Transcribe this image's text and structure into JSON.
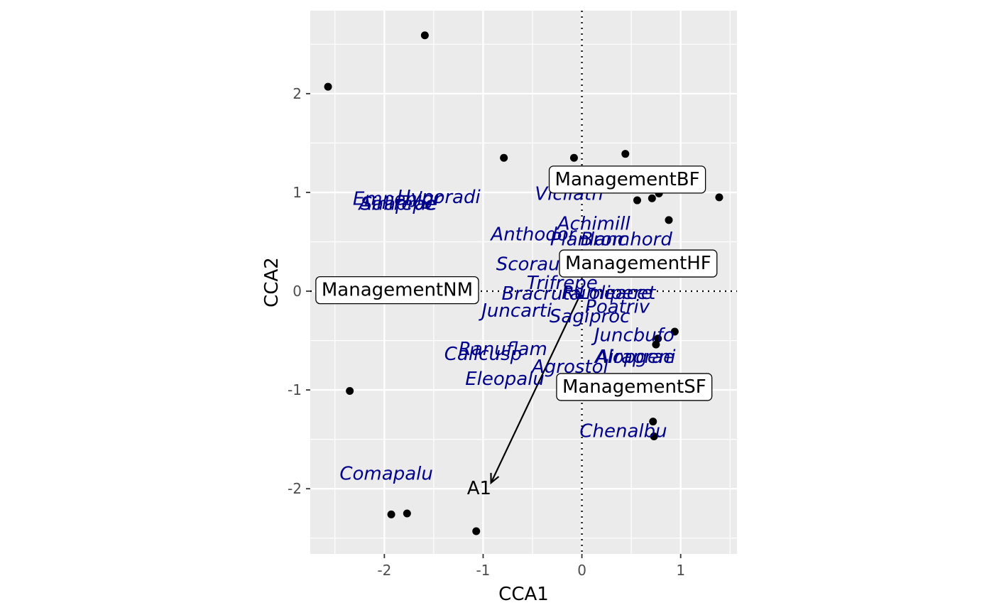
{
  "chart_data": {
    "type": "scatter",
    "xlabel": "CCA1",
    "ylabel": "CCA2",
    "xlim": [
      -2.75,
      1.57
    ],
    "ylim": [
      -2.66,
      2.84
    ],
    "x_ticks": [
      -2,
      -1,
      0,
      1
    ],
    "y_ticks": [
      -2,
      -1,
      0,
      1,
      2
    ],
    "x_tick_labels": [
      "-2",
      "-1",
      "0",
      "1"
    ],
    "y_tick_labels": [
      "-2",
      "-1",
      "0",
      "1",
      "2"
    ],
    "grid": true,
    "colors": {
      "panel_background": "#ebebeb",
      "grid_line": "#ffffff",
      "points": "#000000",
      "species_text": "#00008b",
      "label_box_fill": "#ffffff",
      "label_box_border": "#000000"
    },
    "site_points": [
      {
        "x": -2.57,
        "y": 2.07
      },
      {
        "x": -1.59,
        "y": 2.59
      },
      {
        "x": -0.79,
        "y": 1.35
      },
      {
        "x": -0.08,
        "y": 1.35
      },
      {
        "x": 0.44,
        "y": 1.39
      },
      {
        "x": 0.56,
        "y": 0.92
      },
      {
        "x": 0.71,
        "y": 0.94
      },
      {
        "x": 0.78,
        "y": 0.99
      },
      {
        "x": 0.88,
        "y": 0.72
      },
      {
        "x": 1.39,
        "y": 0.95
      },
      {
        "x": 0.77,
        "y": -0.48
      },
      {
        "x": 0.75,
        "y": -0.54
      },
      {
        "x": 0.94,
        "y": -0.41
      },
      {
        "x": 0.72,
        "y": -1.32
      },
      {
        "x": 0.73,
        "y": -1.47
      },
      {
        "x": -2.35,
        "y": -1.01
      },
      {
        "x": -1.93,
        "y": -2.26
      },
      {
        "x": -1.77,
        "y": -2.25
      },
      {
        "x": -1.07,
        "y": -2.43
      }
    ],
    "species": [
      {
        "label": "Empenigr",
        "x": -1.87,
        "y": 0.93
      },
      {
        "label": "Hyporadi",
        "x": -1.45,
        "y": 0.95
      },
      {
        "label": "Airaprae",
        "x": -1.86,
        "y": 0.88
      },
      {
        "label": "Salirepe",
        "x": -1.86,
        "y": 0.88
      },
      {
        "label": "Vicilath",
        "x": -0.13,
        "y": 0.98
      },
      {
        "label": "Achimill",
        "x": 0.12,
        "y": 0.68
      },
      {
        "label": "Anthodor",
        "x": -0.49,
        "y": 0.57
      },
      {
        "label": "Planlanc",
        "x": 0.07,
        "y": 0.52
      },
      {
        "label": "Bromhord",
        "x": 0.45,
        "y": 0.52
      },
      {
        "label": "Scorautu",
        "x": -0.45,
        "y": 0.27
      },
      {
        "label": "Trifrepe",
        "x": -0.2,
        "y": 0.08
      },
      {
        "label": "Bracruta",
        "x": -0.41,
        "y": -0.03
      },
      {
        "label": "Rumeacet",
        "x": 0.27,
        "y": -0.02
      },
      {
        "label": "Lolipere",
        "x": 0.34,
        "y": -0.02
      },
      {
        "label": "Juncarti",
        "x": -0.66,
        "y": -0.2
      },
      {
        "label": "Poatriv",
        "x": 0.36,
        "y": -0.16
      },
      {
        "label": "Sagiproc",
        "x": 0.08,
        "y": -0.26
      },
      {
        "label": "Juncbufo",
        "x": 0.53,
        "y": -0.45
      },
      {
        "label": "Ranuflam",
        "x": -0.8,
        "y": -0.59
      },
      {
        "label": "Callcusp",
        "x": -1.0,
        "y": -0.64
      },
      {
        "label": "Alopgeni",
        "x": 0.54,
        "y": -0.67
      },
      {
        "label": "Airaprae2",
        "x": 0.54,
        "y": -0.67
      },
      {
        "label": "Agrostol",
        "x": -0.12,
        "y": -0.77
      },
      {
        "label": "Eleopalu",
        "x": -0.78,
        "y": -0.89
      },
      {
        "label": "Chenalbu",
        "x": 0.42,
        "y": -1.42
      },
      {
        "label": "Comapalu",
        "x": -1.98,
        "y": -1.85
      }
    ],
    "centroids": [
      {
        "label": "ManagementBF",
        "x": 0.46,
        "y": 1.13
      },
      {
        "label": "ManagementHF",
        "x": 0.57,
        "y": 0.28
      },
      {
        "label": "ManagementNM",
        "x": -1.87,
        "y": 0.01
      },
      {
        "label": "ManagementSF",
        "x": 0.53,
        "y": -0.97
      }
    ],
    "biplot_arrows": [
      {
        "label": "A1",
        "x0": 0,
        "y0": 0,
        "x1": -0.92,
        "y1": -1.94,
        "label_x": -1.04,
        "label_y": -2.0
      }
    ]
  }
}
